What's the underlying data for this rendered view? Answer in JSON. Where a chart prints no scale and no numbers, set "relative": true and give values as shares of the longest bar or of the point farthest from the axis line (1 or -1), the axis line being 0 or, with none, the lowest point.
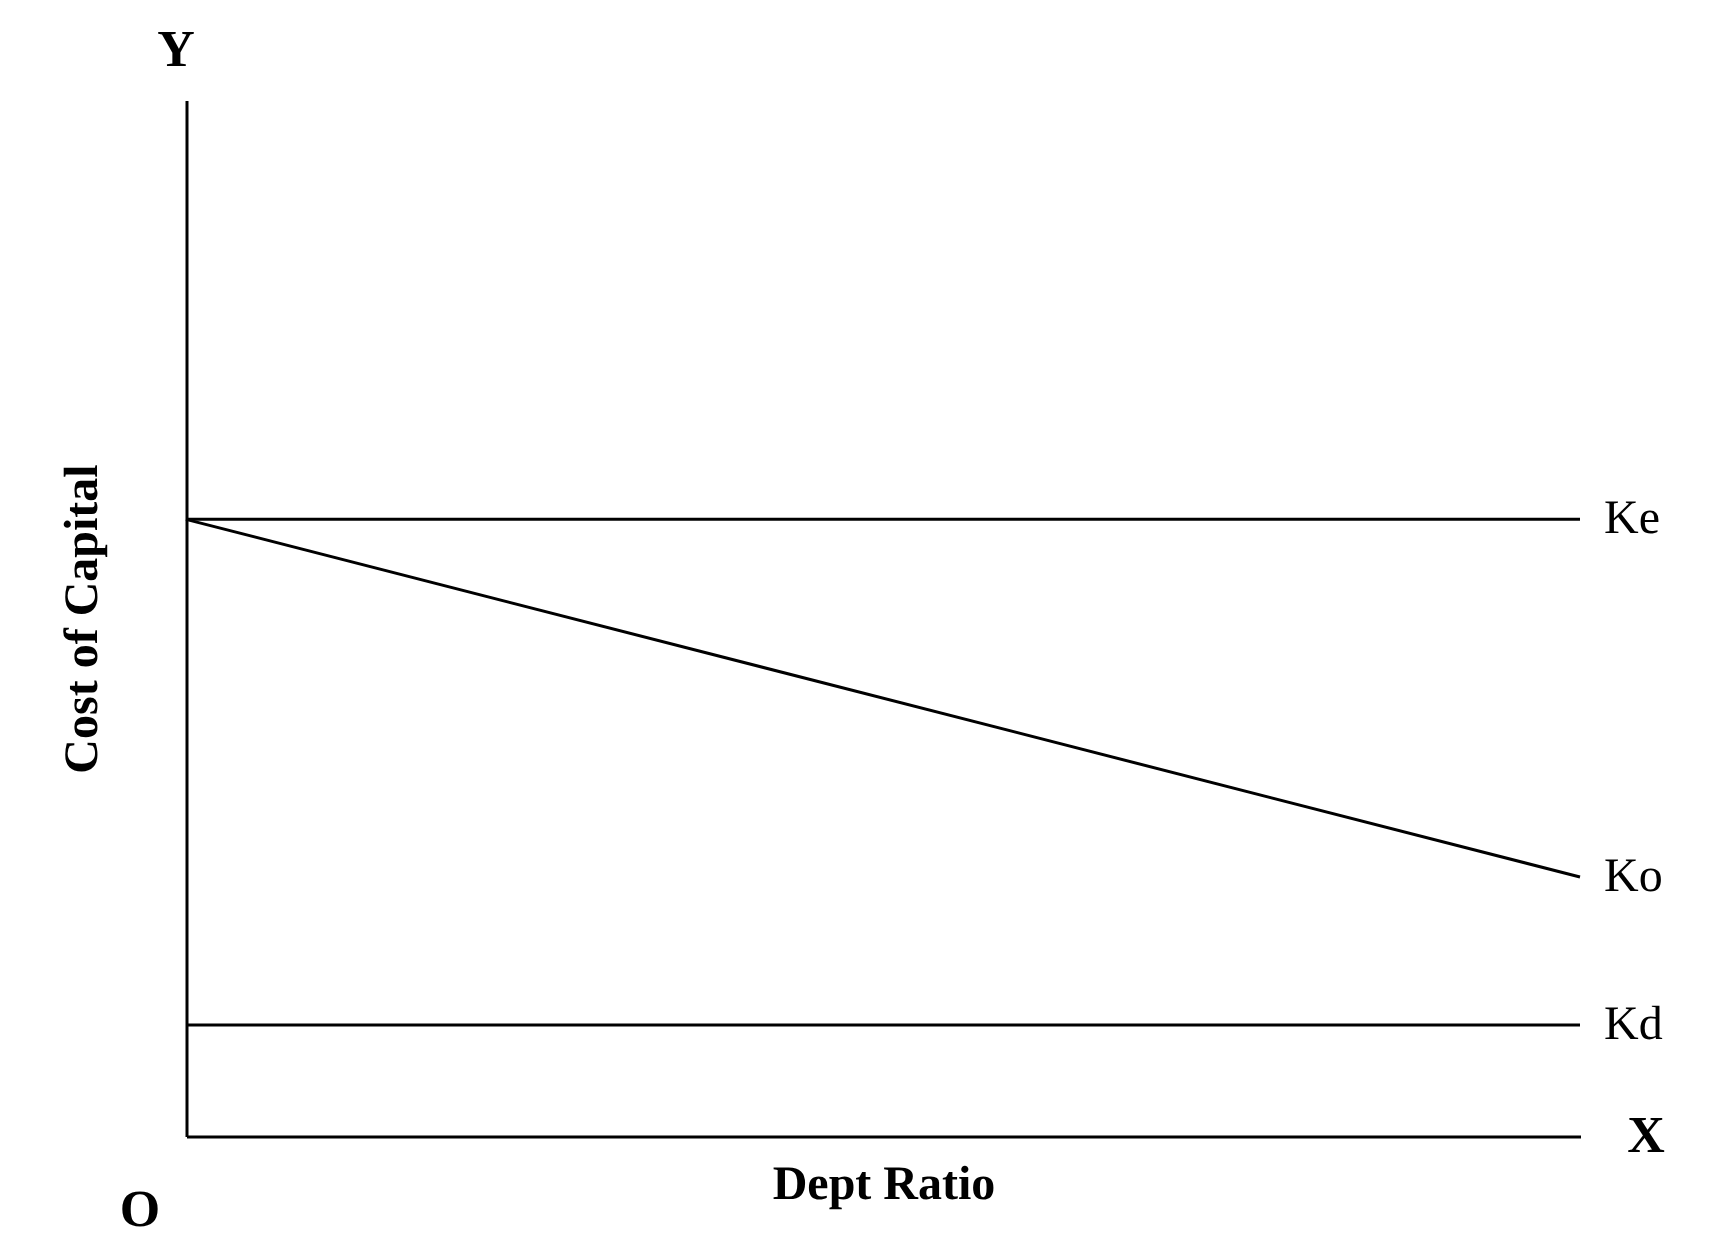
{
  "chart_data": {
    "type": "line",
    "relative": true,
    "xlabel": "Dept Ratio",
    "ylabel": "Cost of Capital",
    "categories": [
      null,
      null
    ],
    "series": [
      {
        "name": "Ke",
        "color": "#000000",
        "values": [
          1,
          1
        ]
      },
      {
        "name": "Ko",
        "color": "#000000",
        "values": [
          1,
          0.42
        ]
      },
      {
        "name": "Kd",
        "color": "#000000",
        "values": [
          0.18,
          0.18
        ]
      }
    ],
    "annotations": [
      "Y",
      "X",
      "O"
    ],
    "grid": false,
    "legend": false,
    "marker": "none",
    "line_style": "solid",
    "tick_labels": false
  }
}
